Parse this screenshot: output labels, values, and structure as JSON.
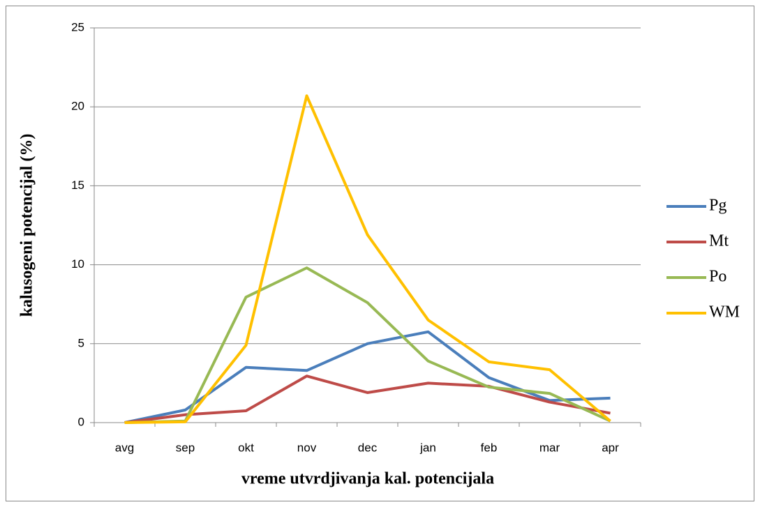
{
  "chart_data": {
    "type": "line",
    "x_label": "vreme  utvrdjivanja  kal. potencijala",
    "y_label": "kalusogeni potencijal  (%)",
    "categories": [
      "avg",
      "sep",
      "okt",
      "nov",
      "dec",
      "jan",
      "feb",
      "mar",
      "apr"
    ],
    "series": [
      {
        "name": "Pg",
        "color": "#4a7ebb",
        "values": [
          0,
          0.8,
          3.5,
          3.3,
          5.0,
          5.75,
          2.85,
          1.4,
          1.55
        ]
      },
      {
        "name": "Mt",
        "color": "#be4b48",
        "values": [
          0,
          0.5,
          0.75,
          2.95,
          1.9,
          2.5,
          2.3,
          1.3,
          0.6
        ]
      },
      {
        "name": "Po",
        "color": "#98b954",
        "values": [
          0,
          0.1,
          7.95,
          9.8,
          7.6,
          3.9,
          2.25,
          1.85,
          0.1
        ]
      },
      {
        "name": "WM",
        "color": "#ffc000",
        "values": [
          0,
          0.05,
          4.9,
          20.7,
          11.9,
          6.5,
          3.85,
          3.35,
          0.1
        ]
      }
    ],
    "ylim": [
      0,
      25
    ],
    "yticks": [
      0,
      5,
      10,
      15,
      20,
      25
    ],
    "grid": true,
    "legend": "right"
  }
}
